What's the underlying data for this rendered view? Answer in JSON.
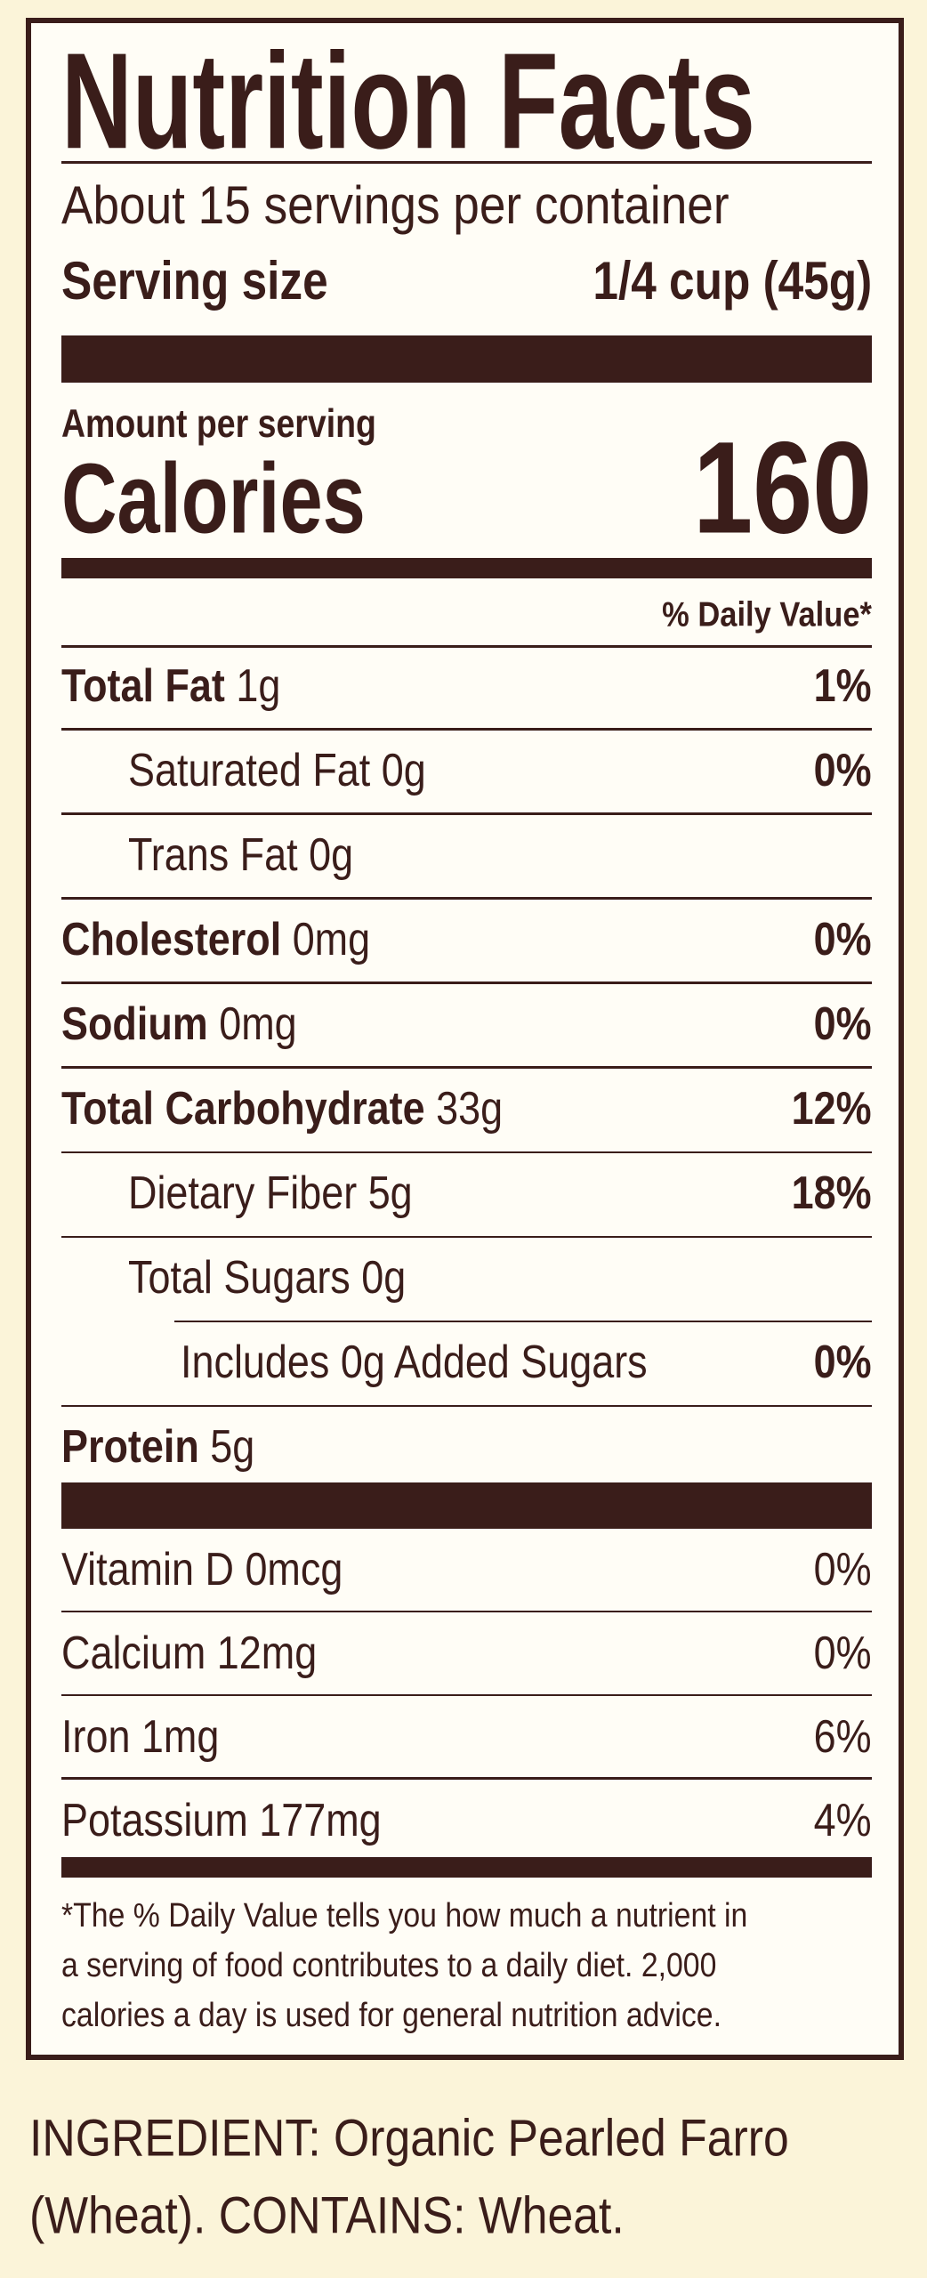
{
  "header": {
    "title": "Nutrition Facts",
    "servings": "About 15 servings per container",
    "serving_size_label": "Serving size",
    "serving_size_value": "1/4 cup (45g)"
  },
  "calories": {
    "amount_label": "Amount per serving",
    "label": "Calories",
    "value": 160
  },
  "daily_value_header": "% Daily Value*",
  "nutrients": [
    {
      "name": "Total Fat",
      "amount": "1g",
      "dv": "1%"
    },
    {
      "name": "Saturated Fat",
      "amount": "0g",
      "dv": "0%"
    },
    {
      "name": "Trans Fat",
      "amount": "0g"
    },
    {
      "name": "Cholesterol",
      "amount": "0mg",
      "dv": "0%"
    },
    {
      "name": "Sodium",
      "amount": "0mg",
      "dv": "0%"
    },
    {
      "name": "Total Carbohydrate",
      "amount": "33g",
      "dv": "12%"
    },
    {
      "name": "Dietary Fiber",
      "amount": "5g",
      "dv": "18%"
    },
    {
      "name": "Total Sugars",
      "amount": "0g"
    },
    {
      "name": "Includes",
      "amount": "0g Added Sugars",
      "dv": "0%"
    },
    {
      "name": "Protein",
      "amount": "5g"
    }
  ],
  "vitamins": [
    {
      "name": "Vitamin D 0mcg",
      "dv": "0%"
    },
    {
      "name": "Calcium 12mg",
      "dv": "0%"
    },
    {
      "name": "Iron 1mg",
      "dv": "6%"
    },
    {
      "name": "Potassium 177mg",
      "dv": "4%"
    }
  ],
  "footnote": [
    "*The % Daily Value tells you how much a nutrient in",
    "a serving of food contributes to a daily diet. 2,000",
    "calories a day is used for general nutrition advice."
  ],
  "ingredients": [
    "INGREDIENT: Organic Pearled Farro",
    "(Wheat). CONTAINS: Wheat."
  ]
}
